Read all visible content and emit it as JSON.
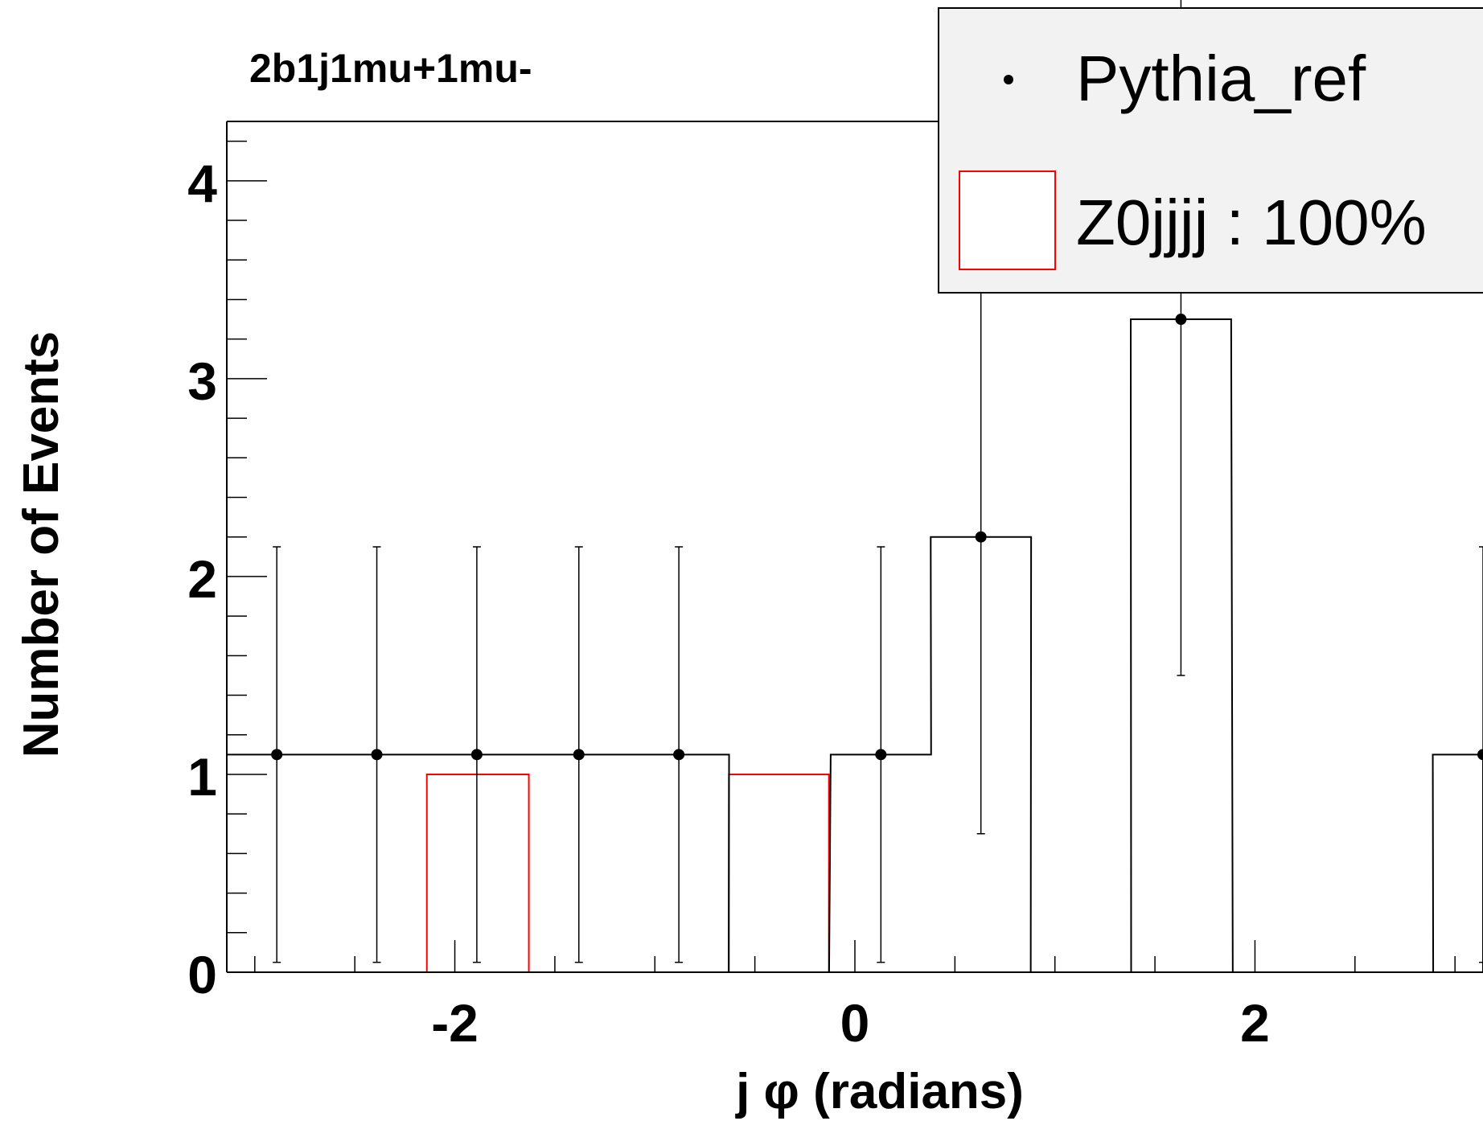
{
  "chart_data": {
    "type": "histogram",
    "title": "2b1j1mu+1mu-",
    "xlabel": "j φ (radians)",
    "ylabel": "Number of Events",
    "xlim": [
      -3.14,
      3.14
    ],
    "ylim": [
      0,
      4.3
    ],
    "x_ticks": [
      "-2",
      "0",
      "2"
    ],
    "y_ticks": [
      "0",
      "1",
      "2",
      "3",
      "4"
    ],
    "bin_width": 0.502,
    "series": [
      {
        "name": "Pythia_ref",
        "color": "#000000",
        "style": "points-with-errors-and-step",
        "points": [
          {
            "x": -2.89,
            "y": 1.1,
            "err_low": 1.05,
            "err_high": 1.05
          },
          {
            "x": -2.39,
            "y": 1.1,
            "err_low": 1.05,
            "err_high": 1.05
          },
          {
            "x": -1.89,
            "y": 1.1,
            "err_low": 1.05,
            "err_high": 1.05
          },
          {
            "x": -1.38,
            "y": 1.1,
            "err_low": 1.05,
            "err_high": 1.05
          },
          {
            "x": -0.88,
            "y": 1.1,
            "err_low": 1.05,
            "err_high": 1.05
          },
          {
            "x": -0.38,
            "y": 0,
            "err_low": 0,
            "err_high": 0
          },
          {
            "x": 0.13,
            "y": 1.1,
            "err_low": 1.05,
            "err_high": 1.05
          },
          {
            "x": 0.63,
            "y": 2.2,
            "err_low": 1.5,
            "err_high": 1.5
          },
          {
            "x": 1.13,
            "y": 0,
            "err_low": 0,
            "err_high": 0
          },
          {
            "x": 1.63,
            "y": 3.3,
            "err_low": 1.8,
            "err_high": 1.8
          },
          {
            "x": 2.14,
            "y": 0,
            "err_low": 0,
            "err_high": 0
          },
          {
            "x": 2.64,
            "y": 0,
            "err_low": 0,
            "err_high": 0
          },
          {
            "x": 3.14,
            "y": 1.1,
            "err_low": 1.05,
            "err_high": 1.05
          }
        ]
      },
      {
        "name": "Z0jjjj : 100%",
        "color": "#ff0000",
        "style": "step",
        "bins": [
          {
            "x0": -2.64,
            "x1": -2.14,
            "y": 0
          },
          {
            "x0": -2.14,
            "x1": -1.63,
            "y": 1.0
          },
          {
            "x0": -1.63,
            "x1": -0.63,
            "y": 0
          },
          {
            "x0": -0.63,
            "x1": -0.13,
            "y": 1.0
          },
          {
            "x0": -0.13,
            "x1": 3.14,
            "y": 0
          }
        ]
      }
    ],
    "legend": {
      "placement": "top-right",
      "entries": [
        "Pythia_ref",
        "Z0jjjj : 100%"
      ]
    }
  }
}
